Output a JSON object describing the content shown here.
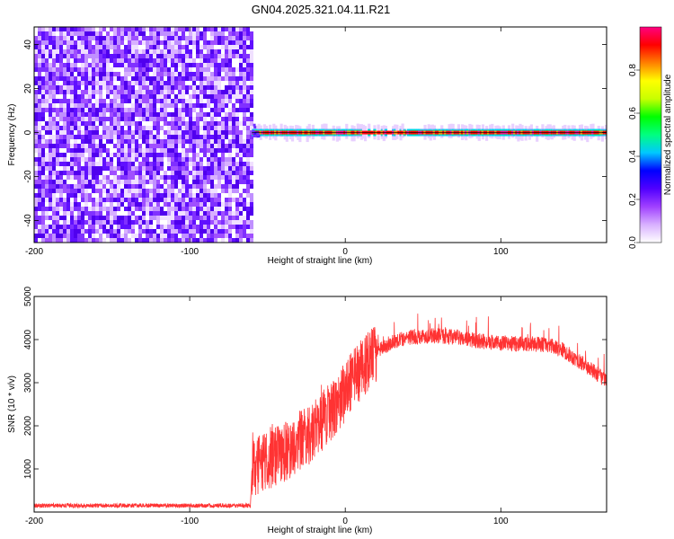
{
  "title": "GN04.2025.321.04.11.R21",
  "colors": {
    "background": "#ffffff",
    "snr_line": "#ff3333",
    "axis": "#000000",
    "zero_line": "#000000"
  },
  "chart_data": [
    {
      "type": "heatmap",
      "name": "spectrogram",
      "xlabel": "Height of straight line (km)",
      "ylabel": "Frequency (Hz)",
      "xlim": [
        -200,
        168
      ],
      "ylim": [
        -50,
        48
      ],
      "xticks": [
        -200,
        -100,
        0,
        100
      ],
      "yticks": [
        -40,
        -20,
        0,
        20,
        40
      ],
      "noise_region_km": [
        -200,
        -60
      ],
      "signal_band_hz": [
        -2,
        3
      ],
      "signal_onset_km": -60,
      "colorbar": {
        "label": "Normalized spectral amplitude",
        "range": [
          0.0,
          1.0
        ],
        "ticks": [
          0.0,
          0.2,
          0.4,
          0.6,
          0.8
        ],
        "colormap": [
          "#ffffff",
          "#d8b0ff",
          "#a040ff",
          "#5000ff",
          "#0000ff",
          "#00c8ff",
          "#00ff80",
          "#00ff00",
          "#c8ff00",
          "#ffff00",
          "#ff8000",
          "#ff0000",
          "#ff0080"
        ]
      }
    },
    {
      "type": "line",
      "name": "snr",
      "xlabel": "Height of straight line (km)",
      "ylabel": "SNR (10 * v/v)",
      "xlim": [
        -200,
        168
      ],
      "ylim": [
        0,
        5000
      ],
      "xticks": [
        -200,
        -100,
        0,
        100
      ],
      "yticks": [
        1000,
        2000,
        3000,
        4000,
        5000
      ],
      "envelope": {
        "x": [
          -200,
          -150,
          -100,
          -61,
          -60,
          -50,
          -40,
          -30,
          -20,
          -10,
          0,
          10,
          20,
          30,
          40,
          50,
          60,
          70,
          80,
          90,
          100,
          110,
          120,
          130,
          140,
          150,
          160,
          168
        ],
        "y": [
          150,
          150,
          150,
          150,
          1000,
          1200,
          1350,
          1600,
          1900,
          2300,
          2800,
          3300,
          3700,
          3950,
          4050,
          4080,
          4090,
          4060,
          4000,
          3950,
          3920,
          3900,
          3900,
          3880,
          3750,
          3500,
          3250,
          3050
        ]
      }
    }
  ]
}
